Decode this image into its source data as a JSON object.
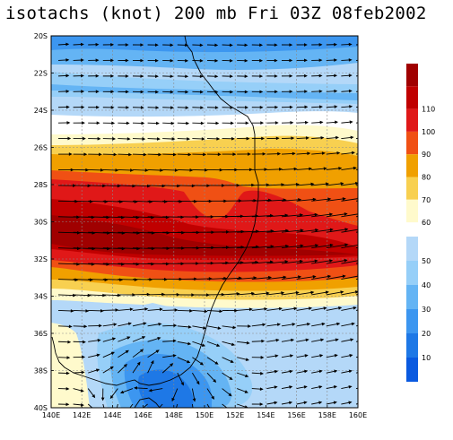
{
  "title": "isotachs (knot) 200 mb Fri 03Z 08feb2002",
  "map": {
    "lat_labels": [
      "20S",
      "22S",
      "24S",
      "26S",
      "28S",
      "30S",
      "32S",
      "34S",
      "36S",
      "38S",
      "40S"
    ],
    "lon_labels": [
      "140E",
      "142E",
      "144E",
      "146E",
      "148E",
      "150E",
      "152E",
      "154E",
      "156E",
      "158E",
      "160E"
    ],
    "lat_range": [
      -40,
      -20
    ],
    "lon_range": [
      140,
      160
    ],
    "grid": "dashed"
  },
  "colorbar": {
    "upper": [
      {
        "label": "",
        "color": "#a00000"
      },
      {
        "label": "110",
        "color": "#c00000"
      },
      {
        "label": "100",
        "color": "#e01818"
      },
      {
        "label": "90",
        "color": "#f05014"
      },
      {
        "label": "80",
        "color": "#f0a000"
      },
      {
        "label": "70",
        "color": "#f8d050"
      },
      {
        "label": "60",
        "color": "#fffacc"
      }
    ],
    "lower": [
      {
        "label": "50",
        "color": "#b4d8f8"
      },
      {
        "label": "40",
        "color": "#96cff8"
      },
      {
        "label": "30",
        "color": "#64b4f4"
      },
      {
        "label": "20",
        "color": "#3c96f0"
      },
      {
        "label": "10",
        "color": "#1e78e6"
      },
      {
        "label": "",
        "color": "#0a5ae0"
      }
    ]
  }
}
